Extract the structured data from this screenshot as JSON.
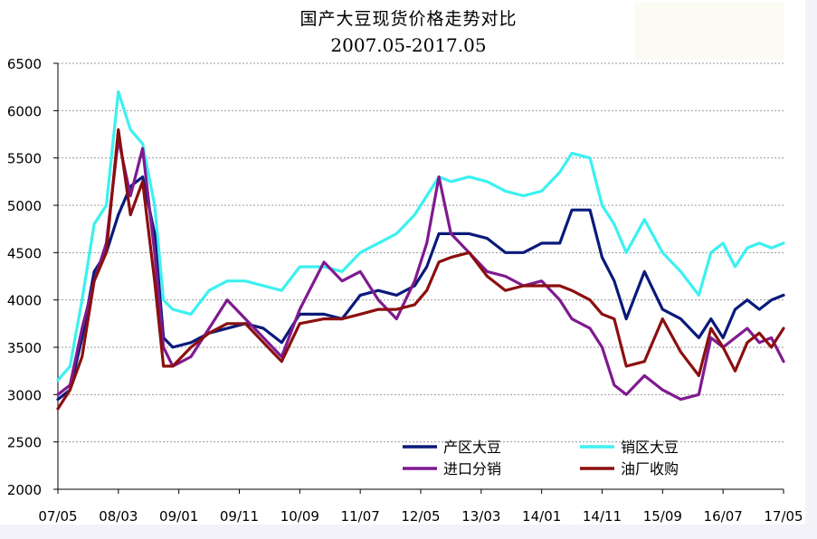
{
  "chart_data": {
    "type": "line",
    "title": "国产大豆现货价格走势对比",
    "subtitle": "2007.05-2017.05",
    "xlabel": "",
    "ylabel": "",
    "ylim": [
      2000,
      6500
    ],
    "yticks": [
      2000,
      2500,
      3000,
      3500,
      4000,
      4500,
      5000,
      5500,
      6000,
      6500
    ],
    "x_ticks": [
      "07/05",
      "08/03",
      "09/01",
      "09/11",
      "10/09",
      "11/07",
      "12/05",
      "13/03",
      "14/01",
      "14/11",
      "15/09",
      "16/07",
      "17/05"
    ],
    "x_range": [
      "2007-05",
      "2017-05"
    ],
    "grid": "horizontal dashed",
    "legend_position": "bottom-right",
    "series": [
      {
        "name": "产区大豆",
        "color": "#0a1a7a",
        "points": [
          [
            "2007-05-01",
            2950
          ],
          [
            "2007-07-01",
            3050
          ],
          [
            "2007-09-01",
            3600
          ],
          [
            "2007-11-01",
            4300
          ],
          [
            "2008-01-01",
            4500
          ],
          [
            "2008-03-01",
            4900
          ],
          [
            "2008-05-01",
            5200
          ],
          [
            "2008-07-01",
            5300
          ],
          [
            "2008-09-01",
            4700
          ],
          [
            "2008-10-15",
            3600
          ],
          [
            "2008-12-01",
            3500
          ],
          [
            "2009-03-01",
            3550
          ],
          [
            "2009-06-01",
            3650
          ],
          [
            "2009-09-01",
            3700
          ],
          [
            "2009-12-01",
            3750
          ],
          [
            "2010-03-01",
            3700
          ],
          [
            "2010-06-01",
            3550
          ],
          [
            "2010-09-01",
            3850
          ],
          [
            "2011-01-01",
            3850
          ],
          [
            "2011-04-01",
            3800
          ],
          [
            "2011-07-01",
            4050
          ],
          [
            "2011-10-01",
            4100
          ],
          [
            "2012-01-01",
            4050
          ],
          [
            "2012-04-01",
            4150
          ],
          [
            "2012-06-01",
            4350
          ],
          [
            "2012-08-01",
            4700
          ],
          [
            "2012-10-01",
            4700
          ],
          [
            "2013-01-01",
            4700
          ],
          [
            "2013-04-01",
            4650
          ],
          [
            "2013-07-01",
            4500
          ],
          [
            "2013-10-01",
            4500
          ],
          [
            "2014-01-01",
            4600
          ],
          [
            "2014-04-01",
            4600
          ],
          [
            "2014-06-01",
            4950
          ],
          [
            "2014-09-01",
            4950
          ],
          [
            "2014-11-01",
            4450
          ],
          [
            "2015-01-01",
            4200
          ],
          [
            "2015-03-01",
            3800
          ],
          [
            "2015-06-01",
            4300
          ],
          [
            "2015-09-01",
            3900
          ],
          [
            "2015-12-01",
            3800
          ],
          [
            "2016-03-01",
            3600
          ],
          [
            "2016-05-01",
            3800
          ],
          [
            "2016-07-01",
            3600
          ],
          [
            "2016-09-01",
            3900
          ],
          [
            "2016-11-01",
            4000
          ],
          [
            "2017-01-01",
            3900
          ],
          [
            "2017-03-01",
            4000
          ],
          [
            "2017-05-01",
            4050
          ]
        ]
      },
      {
        "name": "销区大豆",
        "color": "#3df0f0",
        "points": [
          [
            "2007-05-01",
            3150
          ],
          [
            "2007-07-01",
            3300
          ],
          [
            "2007-09-01",
            4000
          ],
          [
            "2007-11-01",
            4800
          ],
          [
            "2008-01-01",
            5000
          ],
          [
            "2008-03-01",
            6200
          ],
          [
            "2008-05-01",
            5800
          ],
          [
            "2008-07-01",
            5650
          ],
          [
            "2008-09-01",
            5000
          ],
          [
            "2008-10-15",
            4000
          ],
          [
            "2008-12-01",
            3900
          ],
          [
            "2009-03-01",
            3850
          ],
          [
            "2009-06-01",
            4100
          ],
          [
            "2009-09-01",
            4200
          ],
          [
            "2009-12-01",
            4200
          ],
          [
            "2010-03-01",
            4150
          ],
          [
            "2010-06-01",
            4100
          ],
          [
            "2010-09-01",
            4350
          ],
          [
            "2011-01-01",
            4350
          ],
          [
            "2011-04-01",
            4300
          ],
          [
            "2011-07-01",
            4500
          ],
          [
            "2011-10-01",
            4600
          ],
          [
            "2012-01-01",
            4700
          ],
          [
            "2012-04-01",
            4900
          ],
          [
            "2012-06-01",
            5100
          ],
          [
            "2012-08-01",
            5300
          ],
          [
            "2012-10-01",
            5250
          ],
          [
            "2013-01-01",
            5300
          ],
          [
            "2013-04-01",
            5250
          ],
          [
            "2013-07-01",
            5150
          ],
          [
            "2013-10-01",
            5100
          ],
          [
            "2014-01-01",
            5150
          ],
          [
            "2014-04-01",
            5350
          ],
          [
            "2014-06-01",
            5550
          ],
          [
            "2014-09-01",
            5500
          ],
          [
            "2014-11-01",
            5000
          ],
          [
            "2015-01-01",
            4800
          ],
          [
            "2015-03-01",
            4500
          ],
          [
            "2015-06-01",
            4850
          ],
          [
            "2015-09-01",
            4500
          ],
          [
            "2015-12-01",
            4300
          ],
          [
            "2016-03-01",
            4050
          ],
          [
            "2016-05-01",
            4500
          ],
          [
            "2016-07-01",
            4600
          ],
          [
            "2016-09-01",
            4350
          ],
          [
            "2016-11-01",
            4550
          ],
          [
            "2017-01-01",
            4600
          ],
          [
            "2017-03-01",
            4550
          ],
          [
            "2017-05-01",
            4600
          ]
        ]
      },
      {
        "name": "进口分销",
        "color": "#7f1a8f",
        "points": [
          [
            "2007-05-01",
            3000
          ],
          [
            "2007-07-01",
            3100
          ],
          [
            "2007-09-01",
            3700
          ],
          [
            "2007-11-01",
            4200
          ],
          [
            "2008-01-01",
            4600
          ],
          [
            "2008-03-01",
            5700
          ],
          [
            "2008-05-01",
            5100
          ],
          [
            "2008-07-01",
            5600
          ],
          [
            "2008-09-01",
            4500
          ],
          [
            "2008-10-15",
            3500
          ],
          [
            "2008-12-01",
            3300
          ],
          [
            "2009-03-01",
            3400
          ],
          [
            "2009-06-01",
            3700
          ],
          [
            "2009-09-01",
            4000
          ],
          [
            "2009-12-01",
            3800
          ],
          [
            "2010-03-01",
            3600
          ],
          [
            "2010-06-01",
            3400
          ],
          [
            "2010-09-01",
            3900
          ],
          [
            "2011-01-01",
            4400
          ],
          [
            "2011-04-01",
            4200
          ],
          [
            "2011-07-01",
            4300
          ],
          [
            "2011-10-01",
            4000
          ],
          [
            "2012-01-01",
            3800
          ],
          [
            "2012-04-01",
            4200
          ],
          [
            "2012-06-01",
            4600
          ],
          [
            "2012-08-01",
            5300
          ],
          [
            "2012-10-01",
            4700
          ],
          [
            "2013-01-01",
            4500
          ],
          [
            "2013-04-01",
            4300
          ],
          [
            "2013-07-01",
            4250
          ],
          [
            "2013-10-01",
            4150
          ],
          [
            "2014-01-01",
            4200
          ],
          [
            "2014-04-01",
            4000
          ],
          [
            "2014-06-01",
            3800
          ],
          [
            "2014-09-01",
            3700
          ],
          [
            "2014-11-01",
            3500
          ],
          [
            "2015-01-01",
            3100
          ],
          [
            "2015-03-01",
            3000
          ],
          [
            "2015-06-01",
            3200
          ],
          [
            "2015-09-01",
            3050
          ],
          [
            "2015-12-01",
            2950
          ],
          [
            "2016-03-01",
            3000
          ],
          [
            "2016-05-01",
            3600
          ],
          [
            "2016-07-01",
            3500
          ],
          [
            "2016-09-01",
            3600
          ],
          [
            "2016-11-01",
            3700
          ],
          [
            "2017-01-01",
            3550
          ],
          [
            "2017-03-01",
            3600
          ],
          [
            "2017-05-01",
            3350
          ]
        ]
      },
      {
        "name": "油厂收购",
        "color": "#8b0f0f",
        "points": [
          [
            "2007-05-01",
            2850
          ],
          [
            "2007-07-01",
            3050
          ],
          [
            "2007-09-01",
            3400
          ],
          [
            "2007-11-01",
            4200
          ],
          [
            "2008-01-01",
            4500
          ],
          [
            "2008-03-01",
            5800
          ],
          [
            "2008-05-01",
            4900
          ],
          [
            "2008-07-01",
            5250
          ],
          [
            "2008-09-01",
            4200
          ],
          [
            "2008-10-15",
            3300
          ],
          [
            "2008-12-01",
            3300
          ],
          [
            "2009-03-01",
            3500
          ],
          [
            "2009-06-01",
            3650
          ],
          [
            "2009-09-01",
            3750
          ],
          [
            "2009-12-01",
            3750
          ],
          [
            "2010-03-01",
            3550
          ],
          [
            "2010-06-01",
            3350
          ],
          [
            "2010-09-01",
            3750
          ],
          [
            "2011-01-01",
            3800
          ],
          [
            "2011-04-01",
            3800
          ],
          [
            "2011-07-01",
            3850
          ],
          [
            "2011-10-01",
            3900
          ],
          [
            "2012-01-01",
            3900
          ],
          [
            "2012-04-01",
            3950
          ],
          [
            "2012-06-01",
            4100
          ],
          [
            "2012-08-01",
            4400
          ],
          [
            "2012-10-01",
            4450
          ],
          [
            "2013-01-01",
            4500
          ],
          [
            "2013-04-01",
            4250
          ],
          [
            "2013-07-01",
            4100
          ],
          [
            "2013-10-01",
            4150
          ],
          [
            "2014-01-01",
            4150
          ],
          [
            "2014-04-01",
            4150
          ],
          [
            "2014-06-01",
            4100
          ],
          [
            "2014-09-01",
            4000
          ],
          [
            "2014-11-01",
            3850
          ],
          [
            "2015-01-01",
            3800
          ],
          [
            "2015-03-01",
            3300
          ],
          [
            "2015-06-01",
            3350
          ],
          [
            "2015-09-01",
            3800
          ],
          [
            "2015-12-01",
            3450
          ],
          [
            "2016-03-01",
            3200
          ],
          [
            "2016-05-01",
            3700
          ],
          [
            "2016-07-01",
            3500
          ],
          [
            "2016-09-01",
            3250
          ],
          [
            "2016-11-01",
            3550
          ],
          [
            "2017-01-01",
            3650
          ],
          [
            "2017-03-01",
            3500
          ],
          [
            "2017-05-01",
            3700
          ]
        ]
      }
    ]
  }
}
